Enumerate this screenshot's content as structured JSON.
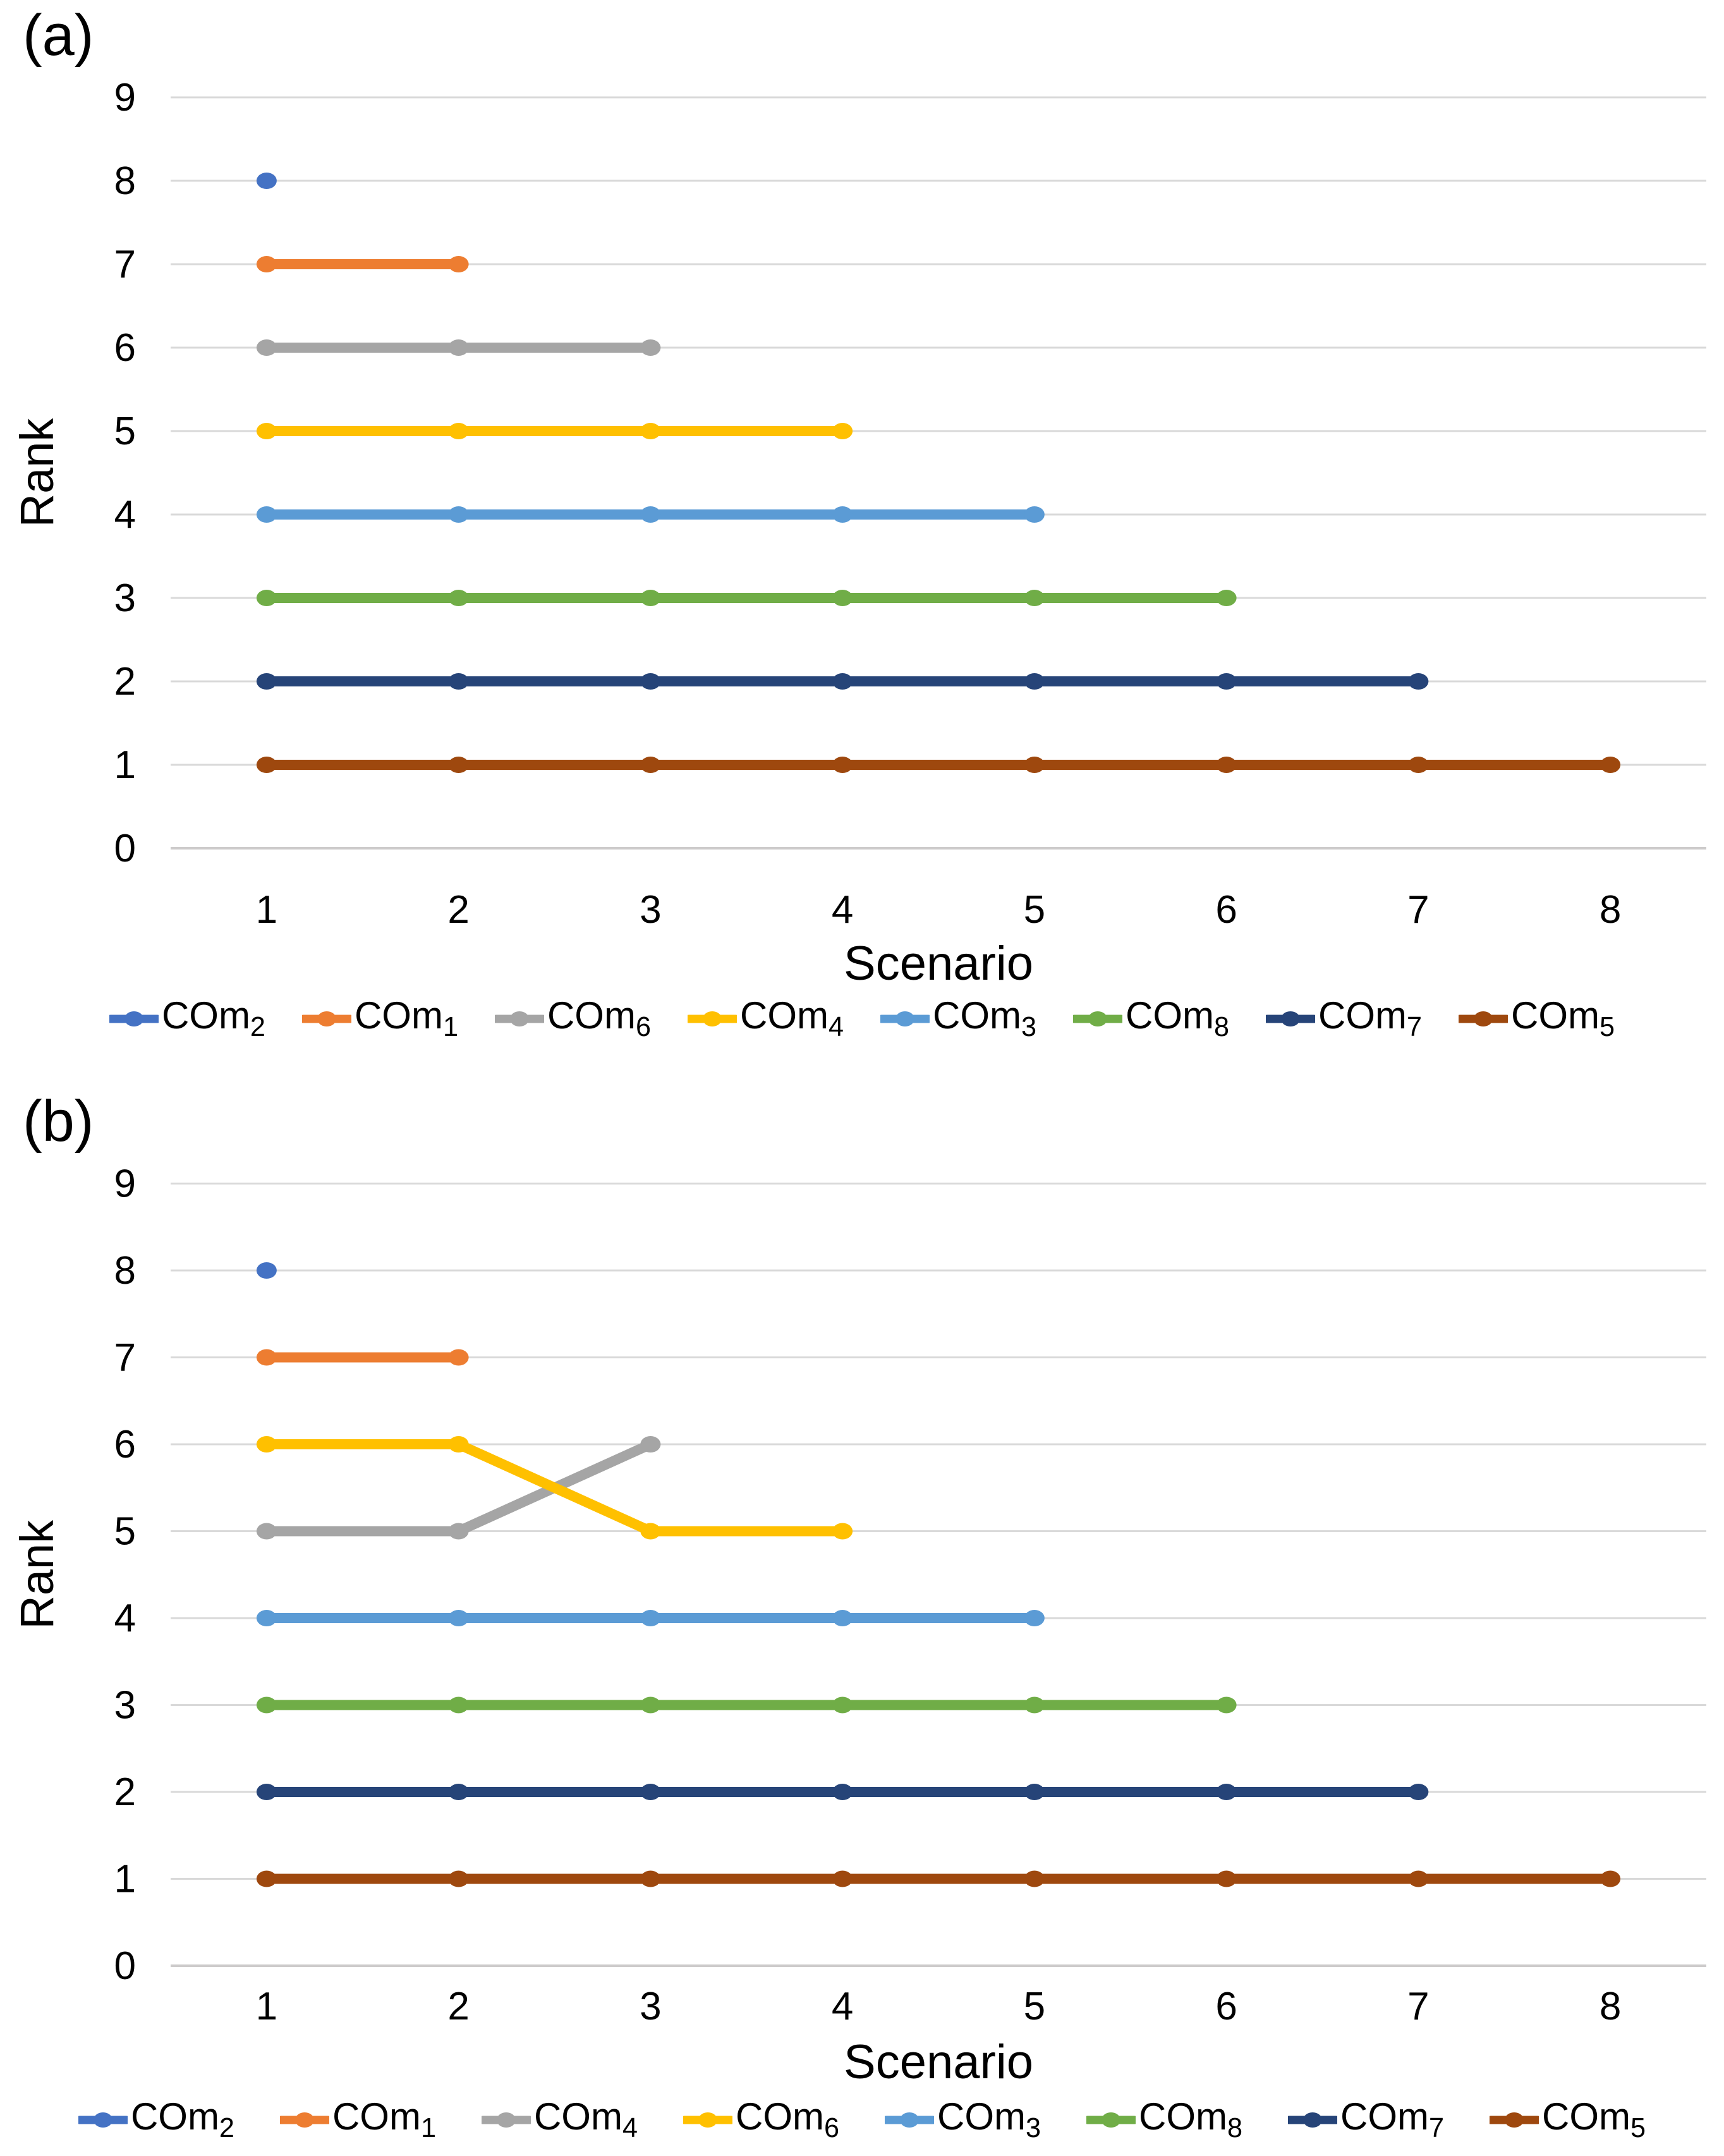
{
  "page": {
    "background": "#FFFFFF",
    "text_color": "#000000",
    "grid_color": "#D9D9D9",
    "axis_line_color": "#CDCBCB"
  },
  "chart_data": [
    {
      "panel_label": "(a)",
      "type": "line",
      "title": "",
      "xlabel": "Scenario",
      "ylabel": "Rank",
      "x_ticks": [
        "1",
        "2",
        "3",
        "4",
        "5",
        "6",
        "7",
        "8"
      ],
      "y_ticks": [
        "0",
        "1",
        "2",
        "3",
        "4",
        "5",
        "6",
        "7",
        "8",
        "9"
      ],
      "ylim": [
        0,
        9
      ],
      "grid": "horizontal",
      "legend_position": "bottom",
      "series": [
        {
          "label_base": "COm",
          "label_sub": "2",
          "color": "#4472C4",
          "x": [
            1
          ],
          "y": [
            8
          ]
        },
        {
          "label_base": "COm",
          "label_sub": "1",
          "color": "#ED7D31",
          "x": [
            1,
            2
          ],
          "y": [
            7,
            7
          ]
        },
        {
          "label_base": "COm",
          "label_sub": "6",
          "color": "#A5A5A5",
          "x": [
            1,
            2,
            3
          ],
          "y": [
            6,
            6,
            6
          ]
        },
        {
          "label_base": "COm",
          "label_sub": "4",
          "color": "#FFC000",
          "x": [
            1,
            2,
            3,
            4
          ],
          "y": [
            5,
            5,
            5,
            5
          ]
        },
        {
          "label_base": "COm",
          "label_sub": "3",
          "color": "#5B9BD5",
          "x": [
            1,
            2,
            3,
            4,
            5
          ],
          "y": [
            4,
            4,
            4,
            4,
            4
          ]
        },
        {
          "label_base": "COm",
          "label_sub": "8",
          "color": "#70AD47",
          "x": [
            1,
            2,
            3,
            4,
            5,
            6
          ],
          "y": [
            3,
            3,
            3,
            3,
            3,
            3
          ]
        },
        {
          "label_base": "COm",
          "label_sub": "7",
          "color": "#264478",
          "x": [
            1,
            2,
            3,
            4,
            5,
            6,
            7
          ],
          "y": [
            2,
            2,
            2,
            2,
            2,
            2,
            2
          ]
        },
        {
          "label_base": "COm",
          "label_sub": "5",
          "color": "#9E480E",
          "x": [
            1,
            2,
            3,
            4,
            5,
            6,
            7,
            8
          ],
          "y": [
            1,
            1,
            1,
            1,
            1,
            1,
            1,
            1
          ]
        }
      ]
    },
    {
      "panel_label": "(b)",
      "type": "line",
      "title": "",
      "xlabel": "Scenario",
      "ylabel": "Rank",
      "x_ticks": [
        "1",
        "2",
        "3",
        "4",
        "5",
        "6",
        "7",
        "8"
      ],
      "y_ticks": [
        "0",
        "1",
        "2",
        "3",
        "4",
        "5",
        "6",
        "7",
        "8",
        "9"
      ],
      "ylim": [
        0,
        9
      ],
      "grid": "horizontal",
      "legend_position": "bottom",
      "series": [
        {
          "label_base": "COm",
          "label_sub": "2",
          "color": "#4472C4",
          "x": [
            1
          ],
          "y": [
            8
          ]
        },
        {
          "label_base": "COm",
          "label_sub": "1",
          "color": "#ED7D31",
          "x": [
            1,
            2
          ],
          "y": [
            7,
            7
          ]
        },
        {
          "label_base": "COm",
          "label_sub": "4",
          "color": "#A5A5A5",
          "x": [
            1,
            2,
            3
          ],
          "y": [
            5,
            5,
            6
          ]
        },
        {
          "label_base": "COm",
          "label_sub": "6",
          "color": "#FFC000",
          "x": [
            1,
            2,
            3,
            4
          ],
          "y": [
            6,
            6,
            5,
            5
          ]
        },
        {
          "label_base": "COm",
          "label_sub": "3",
          "color": "#5B9BD5",
          "x": [
            1,
            2,
            3,
            4,
            5
          ],
          "y": [
            4,
            4,
            4,
            4,
            4
          ]
        },
        {
          "label_base": "COm",
          "label_sub": "8",
          "color": "#70AD47",
          "x": [
            1,
            2,
            3,
            4,
            5,
            6
          ],
          "y": [
            3,
            3,
            3,
            3,
            3,
            3
          ]
        },
        {
          "label_base": "COm",
          "label_sub": "7",
          "color": "#264478",
          "x": [
            1,
            2,
            3,
            4,
            5,
            6,
            7
          ],
          "y": [
            2,
            2,
            2,
            2,
            2,
            2,
            2
          ]
        },
        {
          "label_base": "COm",
          "label_sub": "5",
          "color": "#9E480E",
          "x": [
            1,
            2,
            3,
            4,
            5,
            6,
            7,
            8
          ],
          "y": [
            1,
            1,
            1,
            1,
            1,
            1,
            1,
            1
          ]
        }
      ]
    }
  ]
}
